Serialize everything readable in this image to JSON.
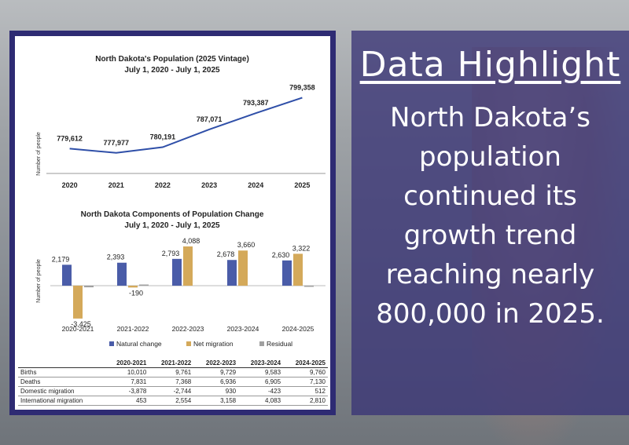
{
  "highlight": {
    "title": "Data Highlight",
    "text": "North Dakota’s population continued its growth trend reaching nearly 800,000 in 2025."
  },
  "chart_data": [
    {
      "type": "line",
      "title": "North Dakota's Population (2025 Vintage)",
      "subtitle": "July 1, 2020 - July 1, 2025",
      "ylabel": "Number of people",
      "x": [
        "2020",
        "2021",
        "2022",
        "2023",
        "2024",
        "2025"
      ],
      "values": [
        779612,
        777977,
        780191,
        787071,
        793387,
        799358
      ],
      "labels": [
        "779,612",
        "777,977",
        "780,191",
        "787,071",
        "793,387",
        "799,358"
      ],
      "ylim": [
        770000,
        805000
      ],
      "color": "#2f4fa8"
    },
    {
      "type": "bar",
      "title": "North Dakota Components of Population Change",
      "subtitle": "July 1, 2020 - July 1, 2025",
      "ylabel": "Number of people",
      "categories": [
        "2020-2021",
        "2021-2022",
        "2022-2023",
        "2023-2024",
        "2024-2025"
      ],
      "ylim": [
        -3800,
        4500
      ],
      "series": [
        {
          "name": "Natural change",
          "color": "#4a5ca8",
          "values": [
            2179,
            2393,
            2793,
            2678,
            2630
          ],
          "labels": [
            "2,179",
            "2,393",
            "2,793",
            "2,678",
            "2,630"
          ]
        },
        {
          "name": "Net migration",
          "color": "#d4a95a",
          "values": [
            -3425,
            -190,
            4088,
            3660,
            3322
          ],
          "labels": [
            "-3,425",
            "-190",
            "4,088",
            "3,660",
            "3,322"
          ]
        },
        {
          "name": "Residual",
          "color": "#a0a0a0",
          "values": [
            -170,
            60,
            0,
            0,
            -60
          ],
          "labels": [
            "",
            "",
            "",
            "",
            ""
          ]
        }
      ]
    }
  ],
  "table": {
    "headers": [
      "",
      "2020-2021",
      "2021-2022",
      "2022-2023",
      "2023-2024",
      "2024-2025"
    ],
    "rows": [
      [
        "Births",
        "10,010",
        "9,761",
        "9,729",
        "9,583",
        "9,760"
      ],
      [
        "Deaths",
        "7,831",
        "7,368",
        "6,936",
        "6,905",
        "7,130"
      ],
      [
        "Domestic migration",
        "-3,878",
        "-2,744",
        "930",
        "-423",
        "512"
      ],
      [
        "International migration",
        "453",
        "2,554",
        "3,158",
        "4,083",
        "2,810"
      ]
    ]
  }
}
